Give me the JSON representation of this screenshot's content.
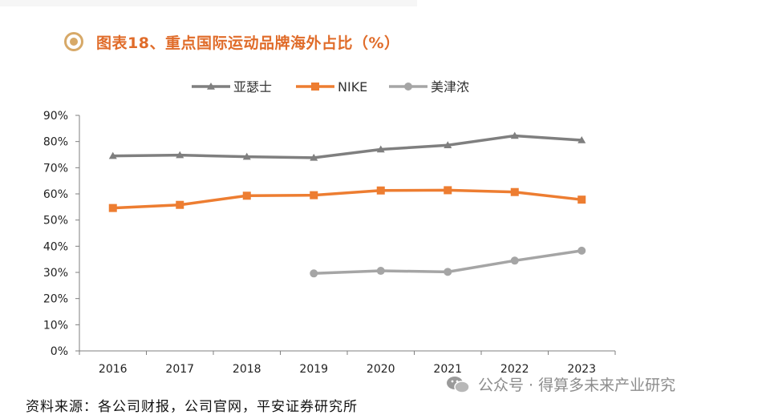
{
  "title": "图表18、重点国际运动品牌海外占比（%）",
  "source": "资料来源：各公司财报，公司官网，平安证券研究所",
  "watermark": "公众号 · 得算多未来产业研究",
  "chart_data": {
    "type": "line",
    "categories": [
      "2016",
      "2017",
      "2018",
      "2019",
      "2020",
      "2021",
      "2022",
      "2023"
    ],
    "ylim": [
      0,
      90
    ],
    "yticks": [
      "0%",
      "10%",
      "20%",
      "30%",
      "40%",
      "50%",
      "60%",
      "70%",
      "80%",
      "90%"
    ],
    "grid": false,
    "legend_position": "top",
    "series": [
      {
        "name": "亚瑟士",
        "color": "#7f7f7f",
        "marker": "triangle",
        "values": [
          74.5,
          74.8,
          74.2,
          73.8,
          77.0,
          78.6,
          82.2,
          80.5
        ]
      },
      {
        "name": "NIKE",
        "color": "#ed7d31",
        "marker": "square",
        "values": [
          54.6,
          55.8,
          59.3,
          59.5,
          61.3,
          61.4,
          60.7,
          57.8
        ]
      },
      {
        "name": "美津浓",
        "color": "#a5a5a5",
        "marker": "circle",
        "values": [
          null,
          null,
          null,
          29.6,
          30.6,
          30.2,
          34.5,
          38.3
        ]
      }
    ]
  }
}
